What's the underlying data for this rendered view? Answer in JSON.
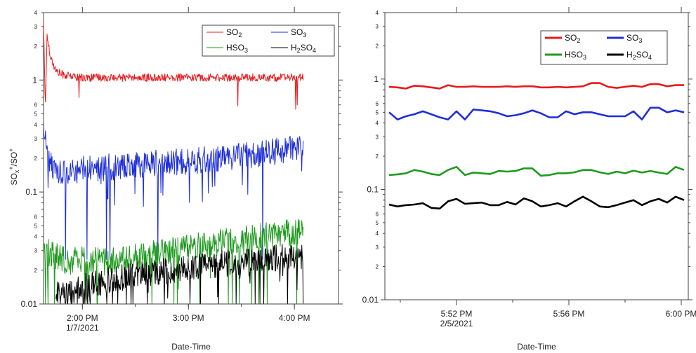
{
  "chart_data": [
    {
      "type": "line",
      "panel": "left",
      "xlabel": "Date-Time",
      "ylabel": "SOx+/SO+",
      "y_scale": "log",
      "ylim": [
        0.01,
        4
      ],
      "x_range": [
        "1:38 PM",
        "4:25 PM"
      ],
      "x_ticks": [
        {
          "label": "2:00 PM",
          "date": "1/7/2021",
          "minutes": 0
        },
        {
          "label": "3:00 PM",
          "date": "",
          "minutes": 60
        },
        {
          "label": "4:00 PM",
          "date": "",
          "minutes": 120
        }
      ],
      "y_ticks": [
        {
          "value": 0.01,
          "label": "0.01"
        },
        {
          "value": 0.1,
          "label": "0.1"
        },
        {
          "value": 1,
          "label": "1"
        }
      ],
      "y_minor_labels": [
        {
          "value": 0.02,
          "label": "2"
        },
        {
          "value": 0.03,
          "label": "3"
        },
        {
          "value": 0.04,
          "label": "4"
        },
        {
          "value": 0.05,
          "label": "5"
        },
        {
          "value": 0.06,
          "label": "6"
        },
        {
          "value": 0.2,
          "label": "2"
        },
        {
          "value": 0.3,
          "label": "3"
        },
        {
          "value": 0.4,
          "label": "4"
        },
        {
          "value": 0.5,
          "label": "5"
        },
        {
          "value": 0.6,
          "label": "6"
        },
        {
          "value": 2,
          "label": "2"
        },
        {
          "value": 3,
          "label": "3"
        },
        {
          "value": 4,
          "label": "4"
        }
      ],
      "legend_position": "top-right",
      "legend_style": "thin",
      "series": [
        {
          "name": "SO2",
          "base": "SO",
          "subscript": "2",
          "color": "#e8191c",
          "x": [
            -22,
            -21,
            -20,
            -18,
            -15,
            -10,
            0,
            20,
            40,
            60,
            80,
            100,
            125
          ],
          "y": [
            3.5,
            0.55,
            2.5,
            1.6,
            1.2,
            1.1,
            1.05,
            1.05,
            1.05,
            1.05,
            1.05,
            1.05,
            1.05
          ]
        },
        {
          "name": "SO3",
          "base": "SO",
          "subscript": "3",
          "color": "#1f2fd8",
          "x": [
            -22,
            -20,
            -15,
            0,
            20,
            40,
            60,
            80,
            100,
            125
          ],
          "y": [
            0.45,
            0.2,
            0.15,
            0.16,
            0.17,
            0.18,
            0.19,
            0.2,
            0.22,
            0.25
          ]
        },
        {
          "name": "HSO3",
          "base": "HSO",
          "subscript": "3",
          "color": "#1f9a1f",
          "x": [
            -22,
            -10,
            0,
            20,
            40,
            60,
            80,
            100,
            125
          ],
          "y": [
            0.03,
            0.025,
            0.025,
            0.025,
            0.028,
            0.032,
            0.036,
            0.04,
            0.045
          ]
        },
        {
          "name": "H2SO4",
          "base": "H",
          "subscript": "2",
          "rest": "SO",
          "subscript2": "4",
          "color": "#000000",
          "x": [
            -15,
            0,
            20,
            40,
            60,
            80,
            100,
            125
          ],
          "y": [
            0.012,
            0.014,
            0.017,
            0.019,
            0.021,
            0.023,
            0.025,
            0.027
          ]
        }
      ]
    },
    {
      "type": "line",
      "panel": "right",
      "xlabel": "Date-Time",
      "y_scale": "log",
      "ylim": [
        0.01,
        4
      ],
      "x_range": [
        "5:49 PM",
        "6:00 PM"
      ],
      "x_ticks": [
        {
          "label": "5:52 PM",
          "date": "2/5/2021",
          "minutes": 0
        },
        {
          "label": "5:56 PM",
          "date": "",
          "minutes": 4
        },
        {
          "label": "6:00 PM",
          "date": "",
          "minutes": 8
        }
      ],
      "y_ticks": [
        {
          "value": 0.01,
          "label": "0.01"
        },
        {
          "value": 0.1,
          "label": "0.1"
        },
        {
          "value": 1,
          "label": "1"
        }
      ],
      "y_minor_labels": [
        {
          "value": 0.02,
          "label": "2"
        },
        {
          "value": 0.03,
          "label": "3"
        },
        {
          "value": 0.04,
          "label": "4"
        },
        {
          "value": 0.05,
          "label": "5"
        },
        {
          "value": 0.06,
          "label": "6"
        },
        {
          "value": 0.2,
          "label": "2"
        },
        {
          "value": 0.3,
          "label": "3"
        },
        {
          "value": 0.4,
          "label": "4"
        },
        {
          "value": 0.5,
          "label": "5"
        },
        {
          "value": 0.6,
          "label": "6"
        },
        {
          "value": 2,
          "label": "2"
        },
        {
          "value": 3,
          "label": "3"
        },
        {
          "value": 4,
          "label": "4"
        }
      ],
      "legend_position": "top-right",
      "legend_style": "thick",
      "series": [
        {
          "name": "SO2",
          "base": "SO",
          "subscript": "2",
          "color": "#e8191c",
          "x": [
            -2.4,
            -2.1,
            -1.8,
            -1.5,
            -1.2,
            -0.9,
            -0.6,
            -0.3,
            0,
            0.3,
            0.6,
            0.9,
            1.2,
            1.5,
            1.8,
            2.1,
            2.4,
            2.7,
            3.0,
            3.3,
            3.6,
            3.9,
            4.2,
            4.5,
            4.8,
            5.1,
            5.4,
            5.7,
            6.0,
            6.3,
            6.6,
            6.9,
            7.2,
            7.5,
            7.8,
            8.1
          ],
          "y": [
            0.85,
            0.84,
            0.82,
            0.87,
            0.86,
            0.84,
            0.82,
            0.88,
            0.85,
            0.85,
            0.86,
            0.85,
            0.85,
            0.85,
            0.86,
            0.85,
            0.86,
            0.86,
            0.84,
            0.84,
            0.85,
            0.84,
            0.85,
            0.86,
            0.92,
            0.92,
            0.85,
            0.83,
            0.85,
            0.87,
            0.85,
            0.9,
            0.9,
            0.86,
            0.88,
            0.88
          ]
        },
        {
          "name": "SO3",
          "base": "SO",
          "subscript": "3",
          "color": "#1f2fd8",
          "x": [
            -2.4,
            -2.1,
            -1.8,
            -1.5,
            -1.2,
            -0.9,
            -0.6,
            -0.3,
            0,
            0.3,
            0.6,
            0.9,
            1.2,
            1.5,
            1.8,
            2.1,
            2.4,
            2.7,
            3.0,
            3.3,
            3.6,
            3.9,
            4.2,
            4.5,
            4.8,
            5.1,
            5.4,
            5.7,
            6.0,
            6.3,
            6.6,
            6.9,
            7.2,
            7.5,
            7.8,
            8.1
          ],
          "y": [
            0.5,
            0.43,
            0.46,
            0.48,
            0.51,
            0.48,
            0.45,
            0.43,
            0.51,
            0.43,
            0.53,
            0.52,
            0.51,
            0.49,
            0.46,
            0.47,
            0.49,
            0.52,
            0.49,
            0.45,
            0.45,
            0.51,
            0.48,
            0.5,
            0.5,
            0.48,
            0.46,
            0.46,
            0.46,
            0.51,
            0.43,
            0.55,
            0.55,
            0.5,
            0.52,
            0.5
          ]
        },
        {
          "name": "HSO3",
          "base": "HSO",
          "subscript": "3",
          "color": "#1f9a1f",
          "x": [
            -2.4,
            -2.1,
            -1.8,
            -1.5,
            -1.2,
            -0.9,
            -0.6,
            -0.3,
            0,
            0.3,
            0.6,
            0.9,
            1.2,
            1.5,
            1.8,
            2.1,
            2.4,
            2.7,
            3.0,
            3.3,
            3.6,
            3.9,
            4.2,
            4.5,
            4.8,
            5.1,
            5.4,
            5.7,
            6.0,
            6.3,
            6.6,
            6.9,
            7.2,
            7.5,
            7.8,
            8.1
          ],
          "y": [
            0.135,
            0.137,
            0.14,
            0.15,
            0.145,
            0.138,
            0.135,
            0.15,
            0.16,
            0.135,
            0.142,
            0.14,
            0.138,
            0.147,
            0.145,
            0.147,
            0.155,
            0.155,
            0.133,
            0.135,
            0.14,
            0.14,
            0.143,
            0.15,
            0.15,
            0.143,
            0.138,
            0.145,
            0.14,
            0.148,
            0.142,
            0.147,
            0.142,
            0.138,
            0.16,
            0.15
          ]
        },
        {
          "name": "H2SO4",
          "base": "H",
          "subscript": "2",
          "rest": "SO",
          "subscript2": "4",
          "color": "#000000",
          "x": [
            -2.4,
            -2.1,
            -1.8,
            -1.5,
            -1.2,
            -0.9,
            -0.6,
            -0.3,
            0,
            0.3,
            0.6,
            0.9,
            1.2,
            1.5,
            1.8,
            2.1,
            2.4,
            2.7,
            3.0,
            3.3,
            3.6,
            3.9,
            4.2,
            4.5,
            4.8,
            5.1,
            5.4,
            5.7,
            6.0,
            6.3,
            6.6,
            6.9,
            7.2,
            7.5,
            7.8,
            8.1
          ],
          "y": [
            0.073,
            0.07,
            0.072,
            0.073,
            0.075,
            0.068,
            0.067,
            0.078,
            0.082,
            0.074,
            0.075,
            0.076,
            0.072,
            0.072,
            0.077,
            0.073,
            0.083,
            0.078,
            0.07,
            0.072,
            0.075,
            0.07,
            0.078,
            0.086,
            0.078,
            0.07,
            0.069,
            0.072,
            0.076,
            0.08,
            0.072,
            0.078,
            0.082,
            0.076,
            0.086,
            0.08
          ]
        }
      ]
    }
  ]
}
